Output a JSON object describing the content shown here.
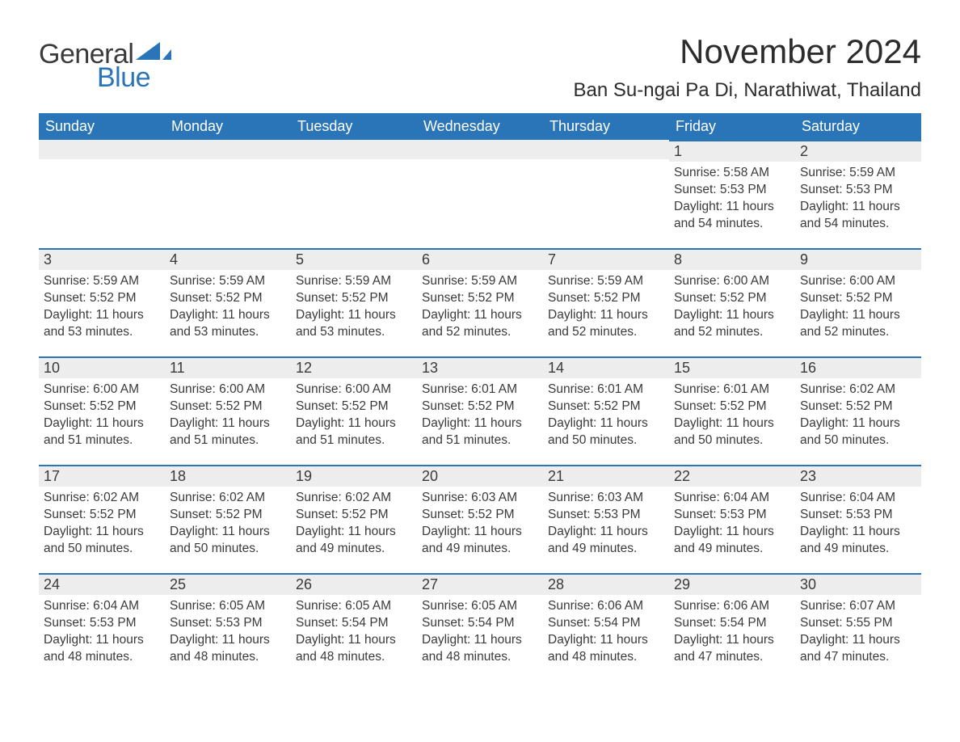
{
  "brand": {
    "word1": "General",
    "word2": "Blue",
    "color1": "#3a3a3a",
    "color2": "#2a74b8"
  },
  "title": "November 2024",
  "location": "Ban Su-ngai Pa Di, Narathiwat, Thailand",
  "colors": {
    "header_bg": "#2a74b8",
    "header_text": "#ffffff",
    "daynum_bg": "#ededed",
    "row_border": "#2a74b8",
    "body_text": "#3a3a3a",
    "page_bg": "#ffffff"
  },
  "typography": {
    "title_fontsize": 42,
    "location_fontsize": 24,
    "header_fontsize": 18,
    "daynum_fontsize": 18,
    "body_fontsize": 15.5,
    "font_family": "Arial"
  },
  "layout": {
    "columns": 7,
    "rows": 5,
    "leading_blanks": 5
  },
  "weekdays": [
    "Sunday",
    "Monday",
    "Tuesday",
    "Wednesday",
    "Thursday",
    "Friday",
    "Saturday"
  ],
  "labels": {
    "sunrise": "Sunrise:",
    "sunset": "Sunset:",
    "daylight": "Daylight:"
  },
  "days": [
    {
      "n": 1,
      "sunrise": "5:58 AM",
      "sunset": "5:53 PM",
      "daylight": "11 hours and 54 minutes."
    },
    {
      "n": 2,
      "sunrise": "5:59 AM",
      "sunset": "5:53 PM",
      "daylight": "11 hours and 54 minutes."
    },
    {
      "n": 3,
      "sunrise": "5:59 AM",
      "sunset": "5:52 PM",
      "daylight": "11 hours and 53 minutes."
    },
    {
      "n": 4,
      "sunrise": "5:59 AM",
      "sunset": "5:52 PM",
      "daylight": "11 hours and 53 minutes."
    },
    {
      "n": 5,
      "sunrise": "5:59 AM",
      "sunset": "5:52 PM",
      "daylight": "11 hours and 53 minutes."
    },
    {
      "n": 6,
      "sunrise": "5:59 AM",
      "sunset": "5:52 PM",
      "daylight": "11 hours and 52 minutes."
    },
    {
      "n": 7,
      "sunrise": "5:59 AM",
      "sunset": "5:52 PM",
      "daylight": "11 hours and 52 minutes."
    },
    {
      "n": 8,
      "sunrise": "6:00 AM",
      "sunset": "5:52 PM",
      "daylight": "11 hours and 52 minutes."
    },
    {
      "n": 9,
      "sunrise": "6:00 AM",
      "sunset": "5:52 PM",
      "daylight": "11 hours and 52 minutes."
    },
    {
      "n": 10,
      "sunrise": "6:00 AM",
      "sunset": "5:52 PM",
      "daylight": "11 hours and 51 minutes."
    },
    {
      "n": 11,
      "sunrise": "6:00 AM",
      "sunset": "5:52 PM",
      "daylight": "11 hours and 51 minutes."
    },
    {
      "n": 12,
      "sunrise": "6:00 AM",
      "sunset": "5:52 PM",
      "daylight": "11 hours and 51 minutes."
    },
    {
      "n": 13,
      "sunrise": "6:01 AM",
      "sunset": "5:52 PM",
      "daylight": "11 hours and 51 minutes."
    },
    {
      "n": 14,
      "sunrise": "6:01 AM",
      "sunset": "5:52 PM",
      "daylight": "11 hours and 50 minutes."
    },
    {
      "n": 15,
      "sunrise": "6:01 AM",
      "sunset": "5:52 PM",
      "daylight": "11 hours and 50 minutes."
    },
    {
      "n": 16,
      "sunrise": "6:02 AM",
      "sunset": "5:52 PM",
      "daylight": "11 hours and 50 minutes."
    },
    {
      "n": 17,
      "sunrise": "6:02 AM",
      "sunset": "5:52 PM",
      "daylight": "11 hours and 50 minutes."
    },
    {
      "n": 18,
      "sunrise": "6:02 AM",
      "sunset": "5:52 PM",
      "daylight": "11 hours and 50 minutes."
    },
    {
      "n": 19,
      "sunrise": "6:02 AM",
      "sunset": "5:52 PM",
      "daylight": "11 hours and 49 minutes."
    },
    {
      "n": 20,
      "sunrise": "6:03 AM",
      "sunset": "5:52 PM",
      "daylight": "11 hours and 49 minutes."
    },
    {
      "n": 21,
      "sunrise": "6:03 AM",
      "sunset": "5:53 PM",
      "daylight": "11 hours and 49 minutes."
    },
    {
      "n": 22,
      "sunrise": "6:04 AM",
      "sunset": "5:53 PM",
      "daylight": "11 hours and 49 minutes."
    },
    {
      "n": 23,
      "sunrise": "6:04 AM",
      "sunset": "5:53 PM",
      "daylight": "11 hours and 49 minutes."
    },
    {
      "n": 24,
      "sunrise": "6:04 AM",
      "sunset": "5:53 PM",
      "daylight": "11 hours and 48 minutes."
    },
    {
      "n": 25,
      "sunrise": "6:05 AM",
      "sunset": "5:53 PM",
      "daylight": "11 hours and 48 minutes."
    },
    {
      "n": 26,
      "sunrise": "6:05 AM",
      "sunset": "5:54 PM",
      "daylight": "11 hours and 48 minutes."
    },
    {
      "n": 27,
      "sunrise": "6:05 AM",
      "sunset": "5:54 PM",
      "daylight": "11 hours and 48 minutes."
    },
    {
      "n": 28,
      "sunrise": "6:06 AM",
      "sunset": "5:54 PM",
      "daylight": "11 hours and 48 minutes."
    },
    {
      "n": 29,
      "sunrise": "6:06 AM",
      "sunset": "5:54 PM",
      "daylight": "11 hours and 47 minutes."
    },
    {
      "n": 30,
      "sunrise": "6:07 AM",
      "sunset": "5:55 PM",
      "daylight": "11 hours and 47 minutes."
    }
  ]
}
